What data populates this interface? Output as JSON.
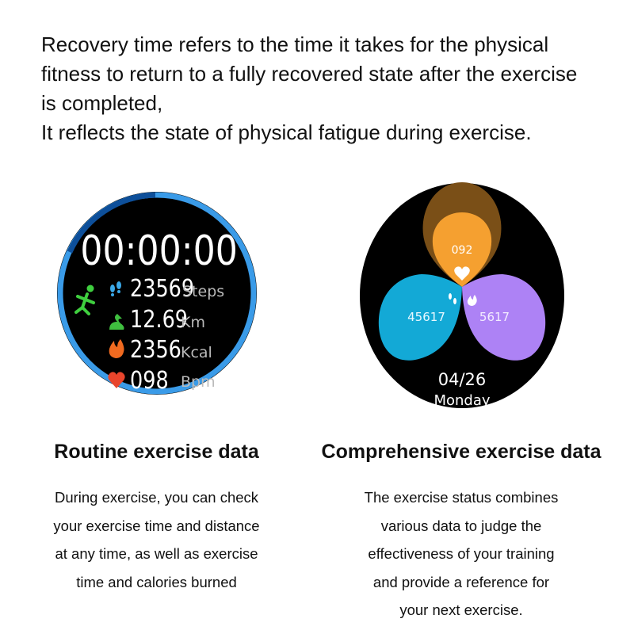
{
  "intro": {
    "lines": [
      "Recovery time refers to the time it takes for the physical",
      "fitness to return to a fully recovered state after the exercise",
      "is completed,",
      "It reflects the state of physical fatigue during exercise."
    ]
  },
  "left_watch": {
    "timer": "00:00:00",
    "stats": [
      {
        "icon": "footsteps-icon",
        "value": "23569",
        "unit": "Steps",
        "color": "#3aa8e8"
      },
      {
        "icon": "route-icon",
        "value": "12.69",
        "unit": "Km",
        "color": "#3fbf3f"
      },
      {
        "icon": "flame-icon",
        "value": "2356",
        "unit": "Kcal",
        "color": "#f06a20"
      },
      {
        "icon": "heart-pulse-icon",
        "value": "098",
        "unit": "Bpm",
        "color": "#e8452c"
      }
    ],
    "ring_color": "#3a9be8",
    "ring_dark_color": "#0d4f9a",
    "runner_color": "#3fcf3f"
  },
  "right_watch": {
    "heart_rate": "092",
    "steps": "45617",
    "calories": "5617",
    "date": "04/26",
    "weekday": "Monday",
    "colors": {
      "orange": "#f5a030",
      "orange_dark": "#7a4f17",
      "blue": "#13a9d6",
      "purple": "#ad82f5"
    }
  },
  "sections": [
    {
      "title": "Routine exercise data",
      "lines": [
        "During exercise, you can check",
        "your exercise time and distance",
        "at any time, as well as exercise",
        "time and calories burned"
      ]
    },
    {
      "title": "Comprehensive exercise data",
      "lines": [
        "The exercise status combines",
        "various data to judge the",
        "effectiveness of your training",
        "and provide a reference for",
        "your next exercise."
      ]
    }
  ]
}
